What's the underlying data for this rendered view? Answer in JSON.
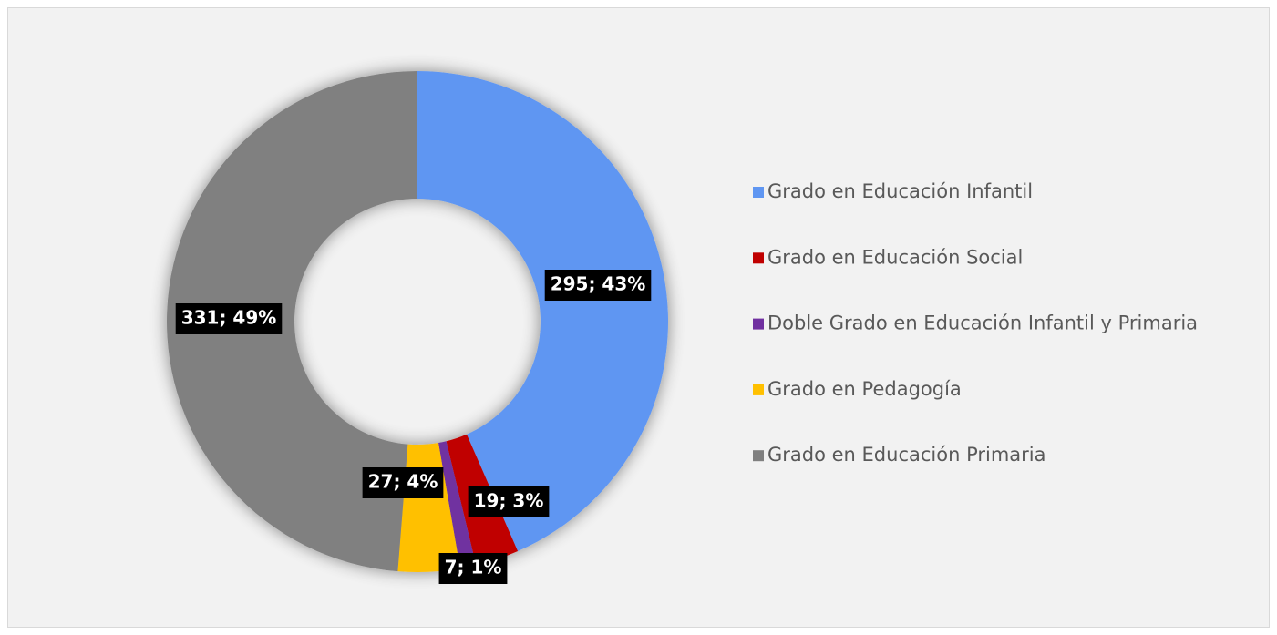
{
  "chart_data": {
    "type": "donut",
    "categories": [
      "Grado en Educación Infantil",
      "Grado en Educación Social",
      "Doble Grado en Educación Infantil y Primaria",
      "Grado en Pedagogía",
      "Grado en Educación Primaria"
    ],
    "values": [
      295,
      19,
      7,
      27,
      331
    ],
    "value_labels": [
      "295; 43%",
      "19; 3%",
      "7; 1%",
      "27; 4%",
      "331; 49%"
    ],
    "colors": [
      "#5f96f2",
      "#c00000",
      "#7030a0",
      "#ffc000",
      "#808080"
    ],
    "legend": "right"
  }
}
